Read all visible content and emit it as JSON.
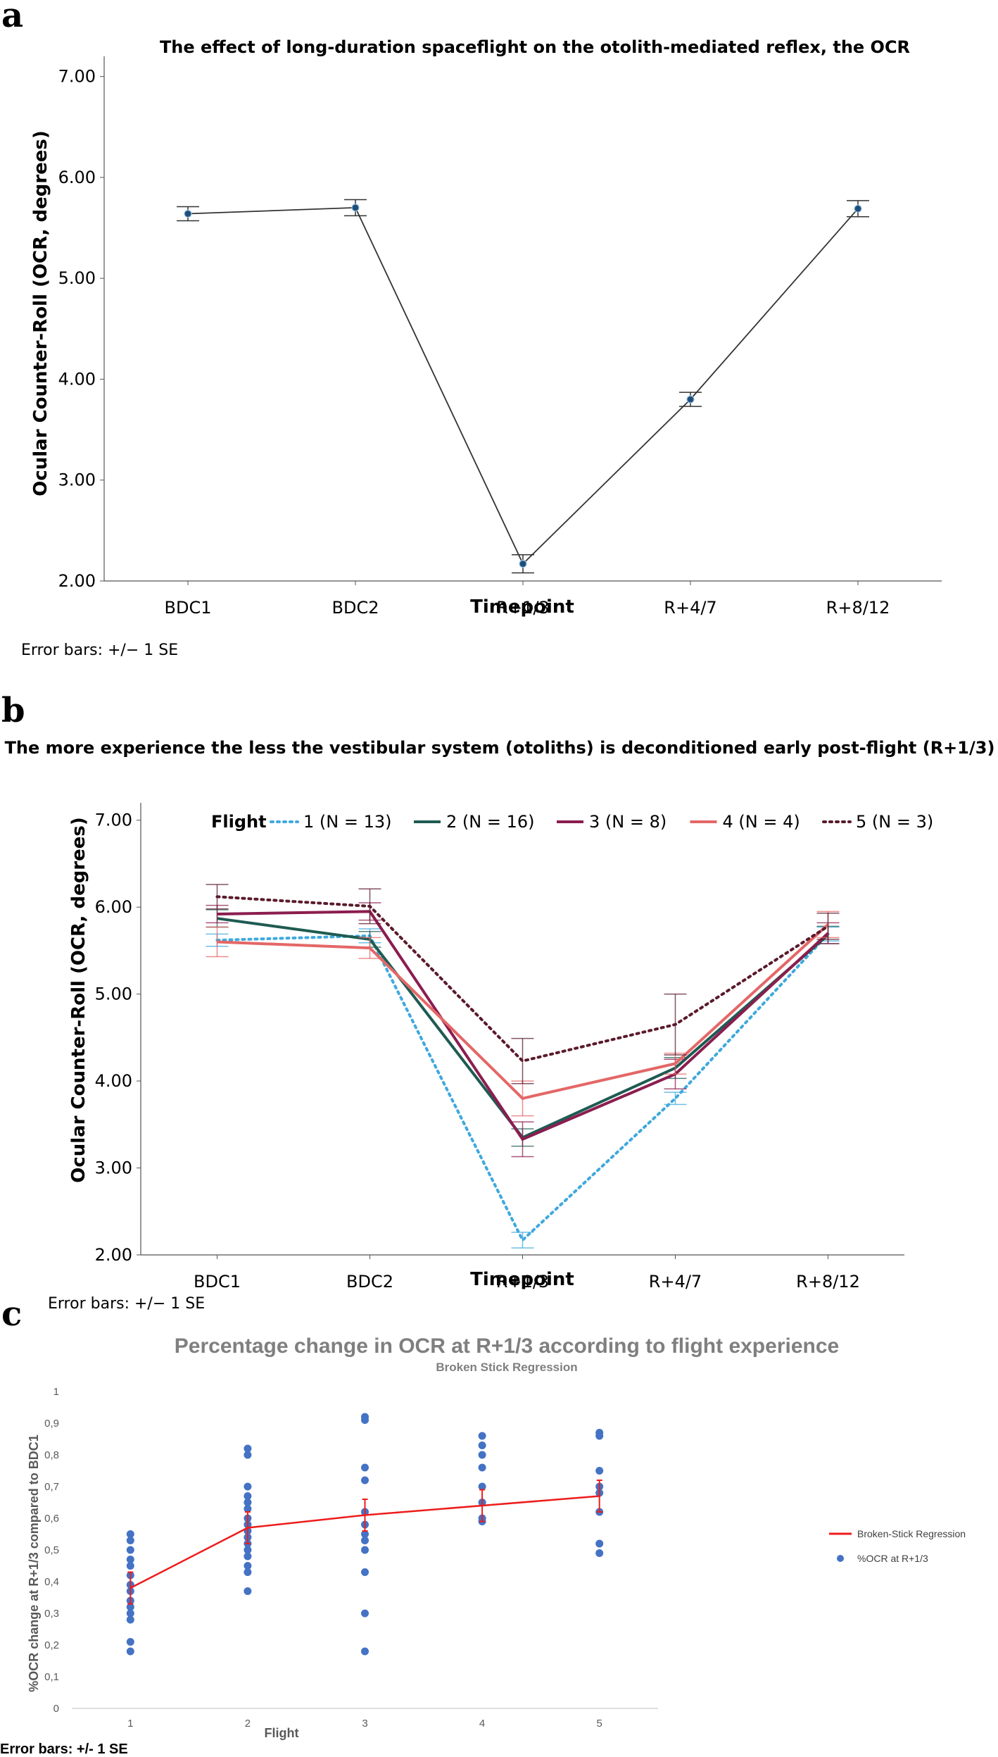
{
  "chart_data": [
    {
      "panel": "a",
      "type": "line",
      "title": "The effect of long-duration spaceflight on the otolith-mediated reflex, the OCR",
      "xlabel": "Timepoint",
      "ylabel": "Ocular Counter-Roll (OCR, degrees)",
      "categories": [
        "BDC1",
        "BDC2",
        "R+1/3",
        "R+4/7",
        "R+8/12"
      ],
      "ylim": [
        2.0,
        7.2
      ],
      "yticks": [
        "2.00",
        "3.00",
        "4.00",
        "5.00",
        "6.00",
        "7.00"
      ],
      "series": [
        {
          "values": [
            5.64,
            5.7,
            2.17,
            3.8,
            5.69
          ],
          "se": [
            0.07,
            0.08,
            0.09,
            0.07,
            0.08
          ],
          "color": "#333333",
          "marker_color": "#1f4e79"
        }
      ],
      "note": "Error bars: +/− 1 SE"
    },
    {
      "panel": "b",
      "type": "line",
      "title": "The more experience the less the vestibular system (otoliths) is deconditioned early post-flight (R+1/3)",
      "xlabel": "Timepoint",
      "ylabel": "Ocular Counter-Roll (OCR, degrees)",
      "categories": [
        "BDC1",
        "BDC2",
        "R+1/3",
        "R+4/7",
        "R+8/12"
      ],
      "ylim": [
        2.0,
        7.2
      ],
      "yticks": [
        "2.00",
        "3.00",
        "4.00",
        "5.00",
        "6.00",
        "7.00"
      ],
      "legend_title": "Flight",
      "series": [
        {
          "name": "1 (N = 13)",
          "values": [
            5.62,
            5.67,
            2.17,
            3.8,
            5.69
          ],
          "se": [
            0.07,
            0.08,
            0.09,
            0.07,
            0.08
          ],
          "color": "#3fa9dd",
          "dash": "dotted"
        },
        {
          "name": "2 (N = 16)",
          "values": [
            5.87,
            5.63,
            3.35,
            4.15,
            5.68
          ],
          "se": [
            0.1,
            0.09,
            0.1,
            0.12,
            0.1
          ],
          "color": "#1e5b52",
          "dash": "solid"
        },
        {
          "name": "3 (N = 8)",
          "values": [
            5.92,
            5.95,
            3.33,
            4.08,
            5.7
          ],
          "se": [
            0.1,
            0.1,
            0.2,
            0.17,
            0.12
          ],
          "color": "#8b1d4f",
          "dash": "solid"
        },
        {
          "name": "4 (N = 4)",
          "values": [
            5.6,
            5.53,
            3.8,
            4.2,
            5.8
          ],
          "se": [
            0.17,
            0.12,
            0.2,
            0.12,
            0.15
          ],
          "color": "#e46767",
          "dash": "solid"
        },
        {
          "name": "5 (N = 3)",
          "values": [
            6.12,
            6.01,
            4.23,
            4.65,
            5.78
          ],
          "se": [
            0.14,
            0.2,
            0.26,
            0.35,
            0.15
          ],
          "color": "#5a1a2b",
          "dash": "dotted"
        }
      ],
      "note": "Error bars: +/− 1 SE"
    },
    {
      "panel": "c",
      "type": "scatter",
      "title": "Percentage change in OCR at R+1/3 according to flight experience",
      "subtitle": "Broken Stick Regression",
      "xlabel": "Flight",
      "ylabel": "%OCR change at R+1/3 compared to BDC1",
      "ylim": [
        0,
        1
      ],
      "yticks": [
        "0",
        "0,1",
        "0,2",
        "0,3",
        "0,4",
        "0,5",
        "0,6",
        "0,7",
        "0,8",
        "0,9",
        "1"
      ],
      "xticks": [
        "1",
        "2",
        "3",
        "4",
        "5"
      ],
      "regression": {
        "name": "Broken-Stick Regression",
        "color": "#ee1c1c",
        "x": [
          1,
          2,
          3,
          4,
          5
        ],
        "y": [
          0.38,
          0.57,
          0.61,
          0.64,
          0.67
        ],
        "se": [
          0.05,
          0.05,
          0.05,
          0.05,
          0.05
        ]
      },
      "scatter": {
        "name": "%OCR at R+1/3",
        "color": "#4472c4",
        "points": [
          [
            1,
            0.18
          ],
          [
            1,
            0.21
          ],
          [
            1,
            0.28
          ],
          [
            1,
            0.3
          ],
          [
            1,
            0.32
          ],
          [
            1,
            0.34
          ],
          [
            1,
            0.37
          ],
          [
            1,
            0.39
          ],
          [
            1,
            0.42
          ],
          [
            1,
            0.45
          ],
          [
            1,
            0.47
          ],
          [
            1,
            0.5
          ],
          [
            1,
            0.53
          ],
          [
            1,
            0.55
          ],
          [
            2,
            0.37
          ],
          [
            2,
            0.43
          ],
          [
            2,
            0.45
          ],
          [
            2,
            0.48
          ],
          [
            2,
            0.5
          ],
          [
            2,
            0.52
          ],
          [
            2,
            0.54
          ],
          [
            2,
            0.56
          ],
          [
            2,
            0.58
          ],
          [
            2,
            0.6
          ],
          [
            2,
            0.63
          ],
          [
            2,
            0.65
          ],
          [
            2,
            0.67
          ],
          [
            2,
            0.7
          ],
          [
            2,
            0.8
          ],
          [
            2,
            0.82
          ],
          [
            3,
            0.18
          ],
          [
            3,
            0.3
          ],
          [
            3,
            0.43
          ],
          [
            3,
            0.5
          ],
          [
            3,
            0.53
          ],
          [
            3,
            0.55
          ],
          [
            3,
            0.58
          ],
          [
            3,
            0.62
          ],
          [
            3,
            0.72
          ],
          [
            3,
            0.76
          ],
          [
            3,
            0.91
          ],
          [
            3,
            0.92
          ],
          [
            4,
            0.59
          ],
          [
            4,
            0.6
          ],
          [
            4,
            0.65
          ],
          [
            4,
            0.7
          ],
          [
            4,
            0.76
          ],
          [
            4,
            0.8
          ],
          [
            4,
            0.83
          ],
          [
            4,
            0.86
          ],
          [
            5,
            0.49
          ],
          [
            5,
            0.52
          ],
          [
            5,
            0.62
          ],
          [
            5,
            0.68
          ],
          [
            5,
            0.7
          ],
          [
            5,
            0.75
          ],
          [
            5,
            0.86
          ],
          [
            5,
            0.87
          ]
        ]
      },
      "note": "Error bars: +/- 1 SE"
    }
  ],
  "panel_labels": [
    "a",
    "b",
    "c"
  ]
}
